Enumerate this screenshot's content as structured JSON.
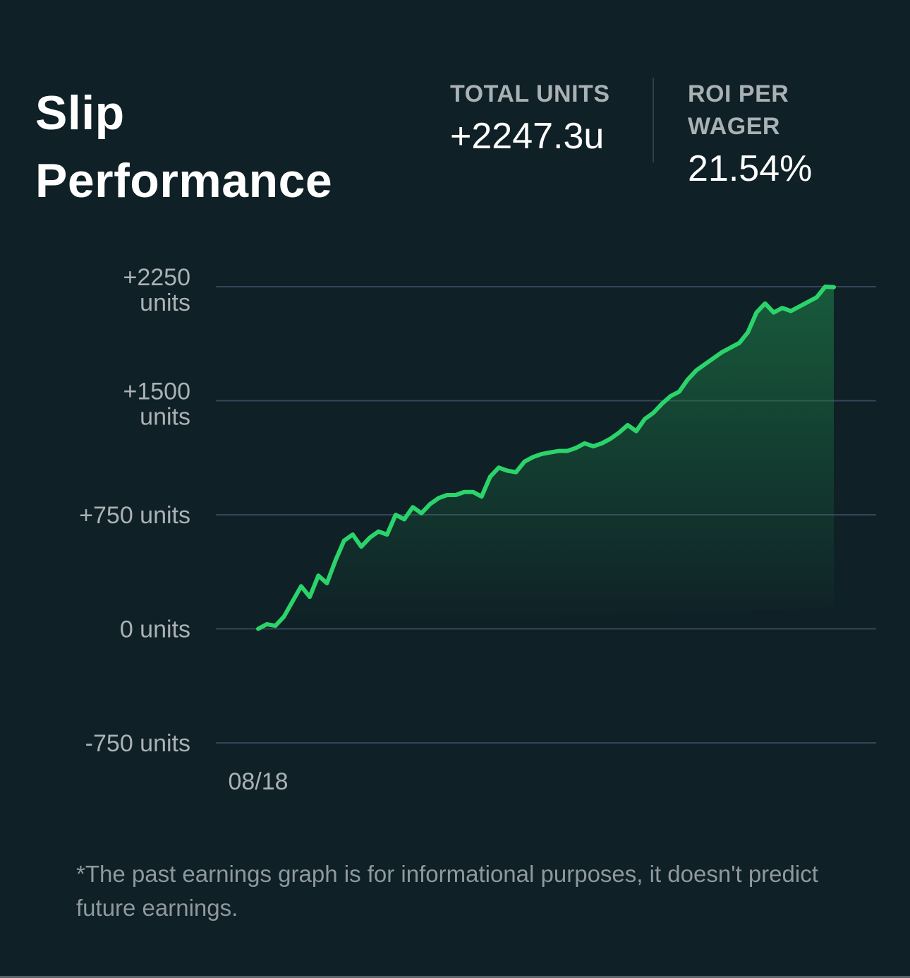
{
  "header": {
    "title": "Slip Performance"
  },
  "stats": {
    "total_units": {
      "label": "TOTAL UNITS",
      "value": "+2247.3u"
    },
    "roi": {
      "label": "ROI PER WAGER",
      "value": "21.54%"
    }
  },
  "disclaimer": "*The past earnings graph is for informational purposes, it doesn't predict future earnings.",
  "colors": {
    "background": "#0f2026",
    "line": "#2bd46a",
    "grid": "#35465a"
  },
  "chart_data": {
    "type": "area",
    "title": "",
    "xlabel": "",
    "ylabel": "",
    "ylim": [
      -750,
      2250
    ],
    "y_ticks": [
      {
        "value": 2250,
        "label": "+2250 units"
      },
      {
        "value": 1500,
        "label": "+1500 units"
      },
      {
        "value": 750,
        "label": "+750 units"
      },
      {
        "value": 0,
        "label": "0 units"
      },
      {
        "value": -750,
        "label": "-750 units"
      }
    ],
    "x_ticks": [
      {
        "index": 0,
        "label": "08/18"
      }
    ],
    "grid": true,
    "legend": "none",
    "series": [
      {
        "values": [
          0,
          30,
          20,
          80,
          180,
          280,
          210,
          350,
          300,
          450,
          580,
          620,
          540,
          600,
          640,
          620,
          750,
          720,
          800,
          760,
          820,
          860,
          880,
          880,
          900,
          900,
          870,
          1000,
          1060,
          1040,
          1030,
          1100,
          1130,
          1150,
          1160,
          1170,
          1170,
          1190,
          1220,
          1200,
          1220,
          1250,
          1290,
          1340,
          1300,
          1380,
          1420,
          1480,
          1530,
          1560,
          1640,
          1700,
          1740,
          1780,
          1820,
          1850,
          1880,
          1950,
          2080,
          2140,
          2080,
          2110,
          2090,
          2120,
          2150,
          2180,
          2250,
          2247.3
        ]
      }
    ]
  }
}
